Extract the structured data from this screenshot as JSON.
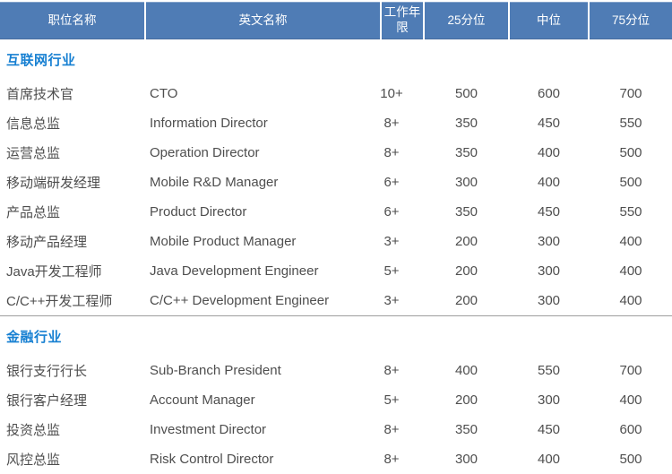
{
  "colors": {
    "header_bg": "#4f7cb5",
    "header_text": "#ffffff",
    "section_title": "#1780d2",
    "body_text": "#4e4e4e",
    "divider": "#9e9e9e"
  },
  "table": {
    "columns": [
      "职位名称",
      "英文名称",
      "工作年限",
      "25分位",
      "中位",
      "75分位"
    ],
    "sections": [
      {
        "title": "互联网行业",
        "rows": [
          {
            "name_cn": "首席技术官",
            "name_en": "CTO",
            "years": "10+",
            "p25": "500",
            "p50": "600",
            "p75": "700"
          },
          {
            "name_cn": "信息总监",
            "name_en": "Information Director",
            "years": "8+",
            "p25": "350",
            "p50": "450",
            "p75": "550"
          },
          {
            "name_cn": "运营总监",
            "name_en": "Operation Director",
            "years": "8+",
            "p25": "350",
            "p50": "400",
            "p75": "500"
          },
          {
            "name_cn": "移动端研发经理",
            "name_en": "Mobile R&D Manager",
            "years": "6+",
            "p25": "300",
            "p50": "400",
            "p75": "500"
          },
          {
            "name_cn": "产品总监",
            "name_en": "Product Director",
            "years": "6+",
            "p25": "350",
            "p50": "450",
            "p75": "550"
          },
          {
            "name_cn": "移动产品经理",
            "name_en": "Mobile Product Manager",
            "years": "3+",
            "p25": "200",
            "p50": "300",
            "p75": "400"
          },
          {
            "name_cn": "Java开发工程师",
            "name_en": "Java Development Engineer",
            "years": "5+",
            "p25": "200",
            "p50": "300",
            "p75": "400"
          },
          {
            "name_cn": "C/C++开发工程师",
            "name_en": "C/C++ Development Engineer",
            "years": "3+",
            "p25": "200",
            "p50": "300",
            "p75": "400"
          }
        ]
      },
      {
        "title": "金融行业",
        "rows": [
          {
            "name_cn": "银行支行行长",
            "name_en": "Sub-Branch President",
            "years": "8+",
            "p25": "400",
            "p50": "550",
            "p75": "700"
          },
          {
            "name_cn": "银行客户经理",
            "name_en": "Account Manager",
            "years": "5+",
            "p25": "200",
            "p50": "300",
            "p75": "400"
          },
          {
            "name_cn": "投资总监",
            "name_en": "Investment Director",
            "years": "8+",
            "p25": "350",
            "p50": "450",
            "p75": "600"
          },
          {
            "name_cn": "风控总监",
            "name_en": "Risk Control Director",
            "years": "8+",
            "p25": "300",
            "p50": "400",
            "p75": "500"
          }
        ]
      }
    ]
  }
}
